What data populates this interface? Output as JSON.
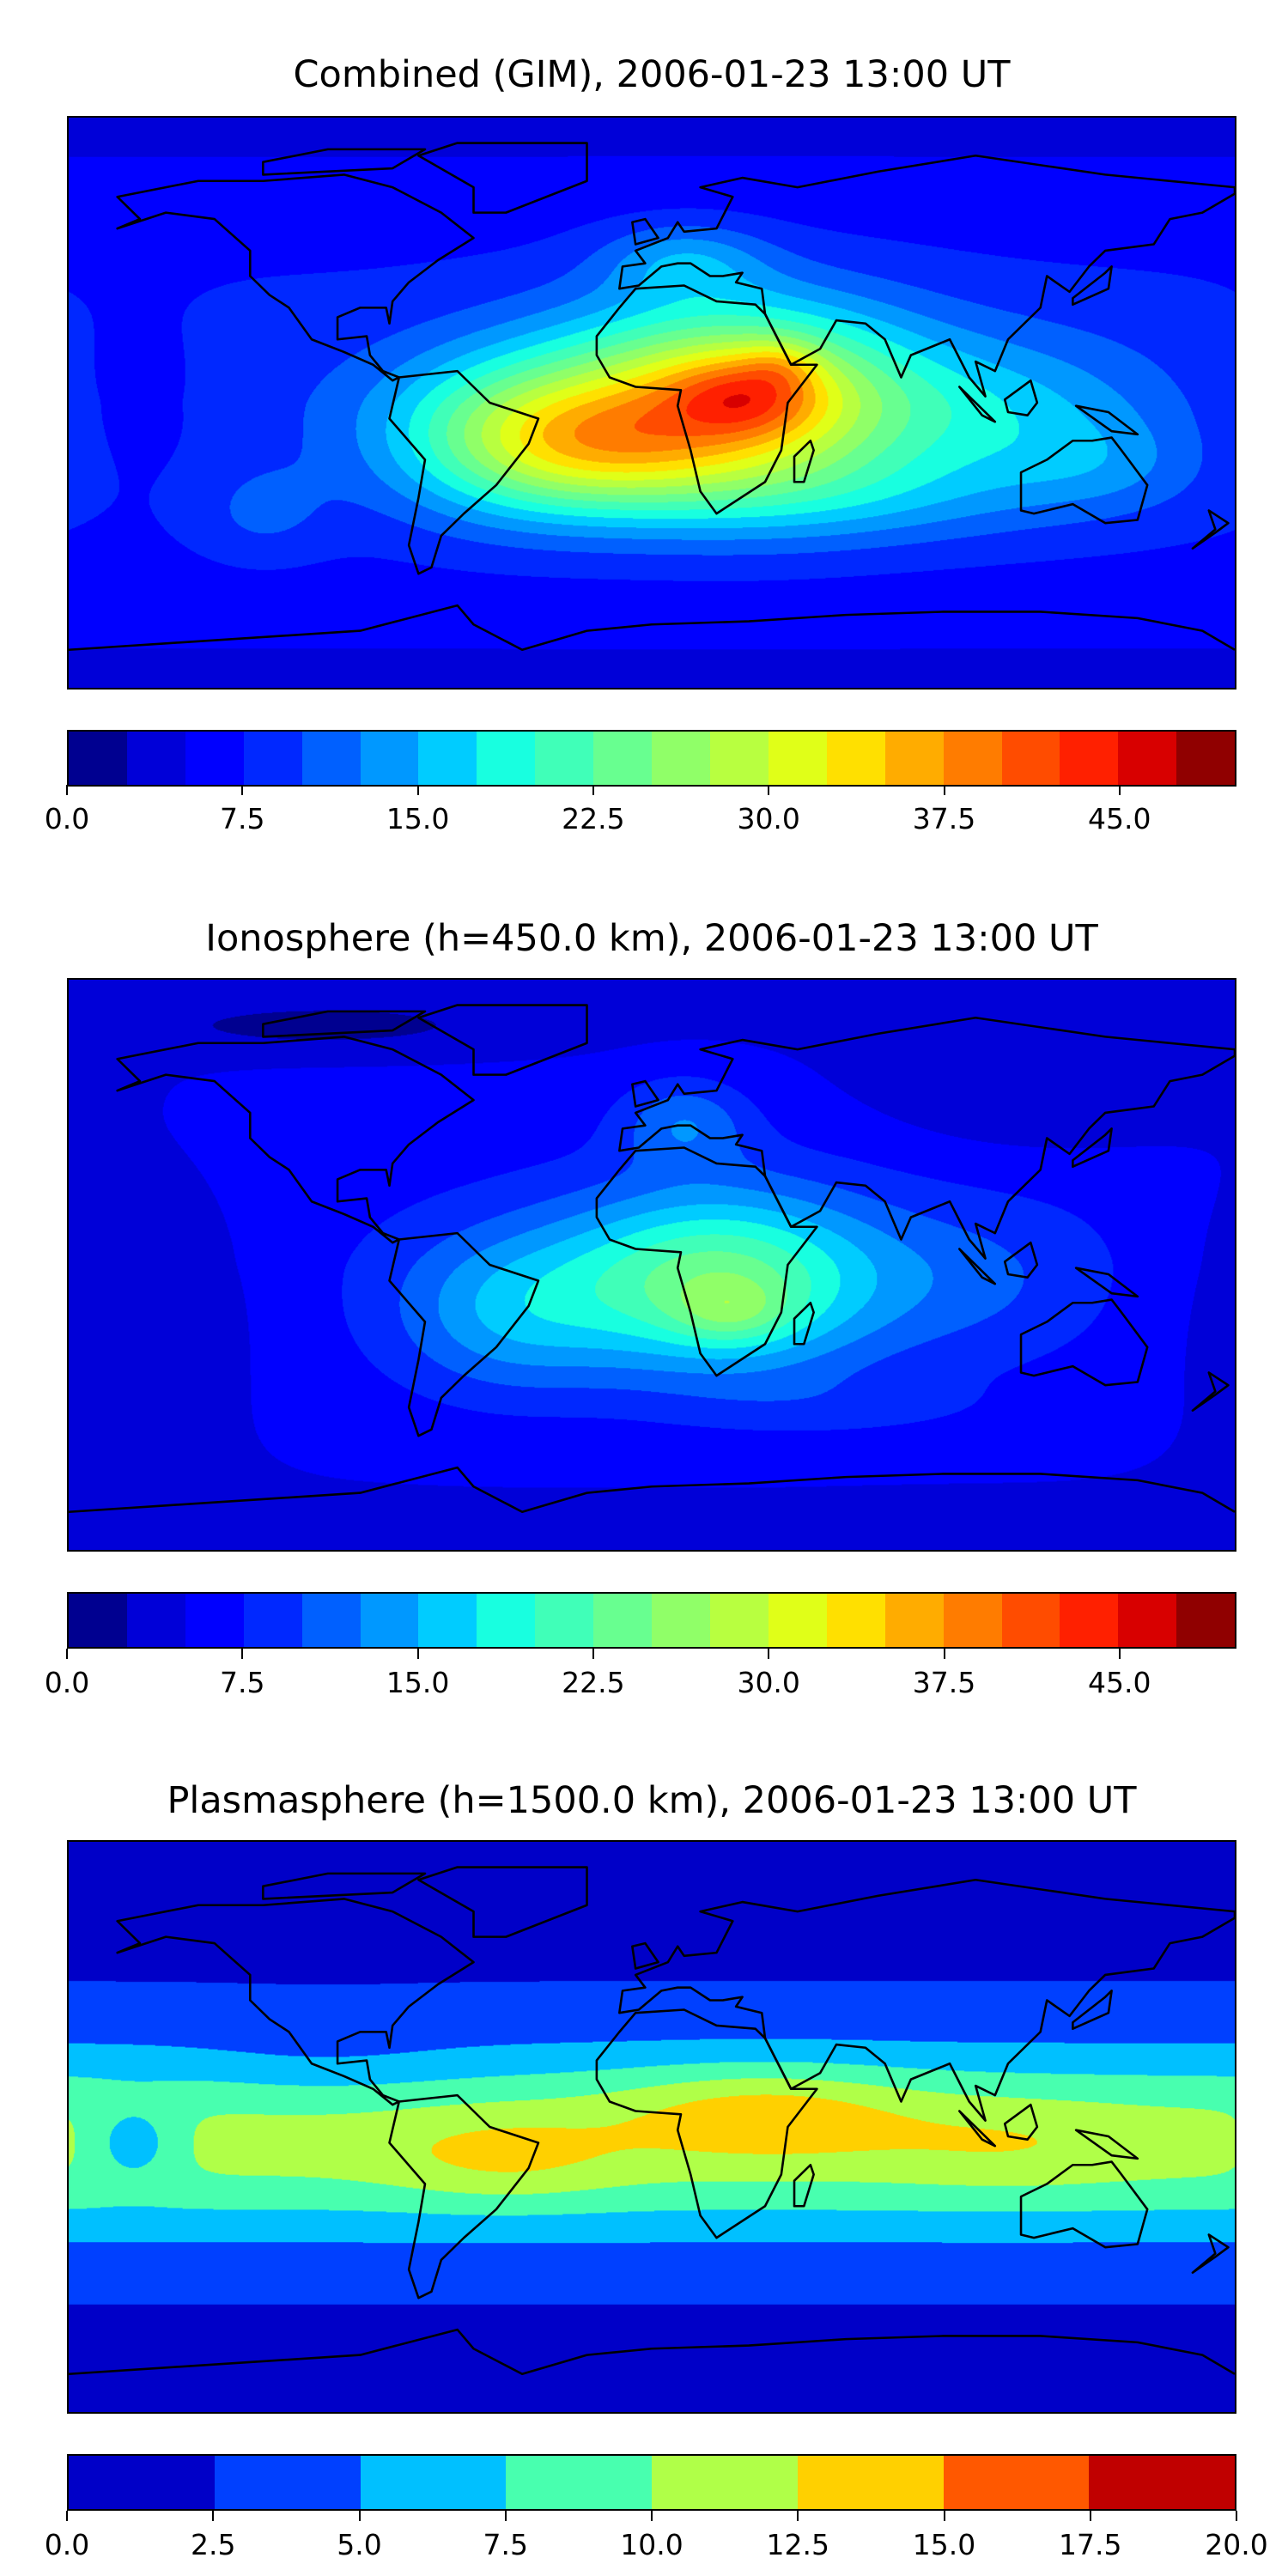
{
  "chart_data": [
    {
      "type": "heatmap",
      "subtype": "filled-contour map",
      "title": "Combined (GIM), 2006-01-23 13:00 UT",
      "levels": [
        0,
        2.5,
        5,
        7.5,
        10,
        12.5,
        15,
        17.5,
        20,
        22.5,
        25,
        27.5,
        30,
        32.5,
        35,
        37.5,
        40,
        42.5,
        45,
        47.5,
        50
      ],
      "tick_labels": [
        "0.0",
        "7.5",
        "15.0",
        "22.5",
        "30.0",
        "37.5",
        "45.0"
      ],
      "tick_values": [
        0,
        7.5,
        15,
        22.5,
        30,
        37.5,
        45
      ],
      "colors": [
        "#000090",
        "#0000d8",
        "#0000ff",
        "#0028ff",
        "#0060ff",
        "#0098ff",
        "#00ccff",
        "#18ffe0",
        "#40ffb8",
        "#68ff90",
        "#90ff68",
        "#b8ff40",
        "#e0ff18",
        "#ffe000",
        "#ffac00",
        "#ff7c00",
        "#ff4c00",
        "#ff2000",
        "#d80000",
        "#900000"
      ],
      "xlim": [
        -180,
        180
      ],
      "ylim": [
        -90,
        90
      ],
      "peak_region": "Africa, value ~37.5-40"
    },
    {
      "type": "heatmap",
      "subtype": "filled-contour map",
      "title": "Ionosphere  (h=450.0 km), 2006-01-23 13:00 UT",
      "levels": [
        0,
        2.5,
        5,
        7.5,
        10,
        12.5,
        15,
        17.5,
        20,
        22.5,
        25,
        27.5,
        30,
        32.5,
        35,
        37.5,
        40,
        42.5,
        45,
        47.5,
        50
      ],
      "tick_labels": [
        "0.0",
        "7.5",
        "15.0",
        "22.5",
        "30.0",
        "37.5",
        "45.0"
      ],
      "tick_values": [
        0,
        7.5,
        15,
        22.5,
        30,
        37.5,
        45
      ],
      "colors": [
        "#000090",
        "#0000d8",
        "#0000ff",
        "#0028ff",
        "#0060ff",
        "#0098ff",
        "#00ccff",
        "#18ffe0",
        "#40ffb8",
        "#68ff90",
        "#90ff68",
        "#b8ff40",
        "#e0ff18",
        "#ffe000",
        "#ffac00",
        "#ff7c00",
        "#ff4c00",
        "#ff2000",
        "#d80000",
        "#900000"
      ],
      "xlim": [
        -180,
        180
      ],
      "ylim": [
        -90,
        90
      ],
      "peak_region": "southern Africa, value ~25-27.5"
    },
    {
      "type": "heatmap",
      "subtype": "filled-contour map",
      "title": "Plasmasphere (h=1500.0 km), 2006-01-23 13:00 UT",
      "levels": [
        0,
        2.5,
        5,
        7.5,
        10,
        12.5,
        15,
        17.5,
        20
      ],
      "tick_labels": [
        "0.0",
        "2.5",
        "5.0",
        "7.5",
        "10.0",
        "12.5",
        "15.0",
        "17.5",
        "20.0"
      ],
      "tick_values": [
        0,
        2.5,
        5,
        7.5,
        10,
        12.5,
        15,
        17.5,
        20
      ],
      "colors": [
        "#0000c8",
        "#0040ff",
        "#00c0ff",
        "#48ffaf",
        "#b0ff48",
        "#ffd000",
        "#ff5800",
        "#c00000"
      ],
      "xlim": [
        -180,
        180
      ],
      "ylim": [
        -90,
        90
      ],
      "peak_region": "Africa / Arabia, value ~12.5-15"
    }
  ]
}
